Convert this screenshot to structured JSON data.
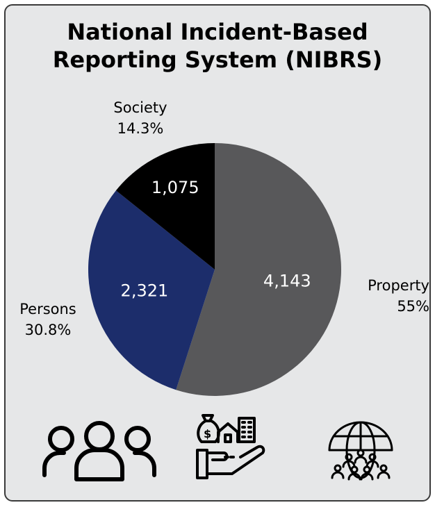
{
  "title_lines": [
    "National Incident-Based",
    "Reporting System (NIBRS)"
  ],
  "chart_data": {
    "type": "pie",
    "title": "National Incident-Based Reporting System (NIBRS)",
    "slices": [
      {
        "label": "Property",
        "value": 4143,
        "value_label": "4,143",
        "percent": "55%",
        "color": "#58585a"
      },
      {
        "label": "Persons",
        "value": 2321,
        "value_label": "2,321",
        "percent": "30.8%",
        "color": "#1c2d6b"
      },
      {
        "label": "Society",
        "value": 1075,
        "value_label": "1,075",
        "percent": "14.3%",
        "color": "#000000"
      }
    ]
  },
  "icons": [
    "persons-icon",
    "property-icon",
    "society-icon"
  ]
}
